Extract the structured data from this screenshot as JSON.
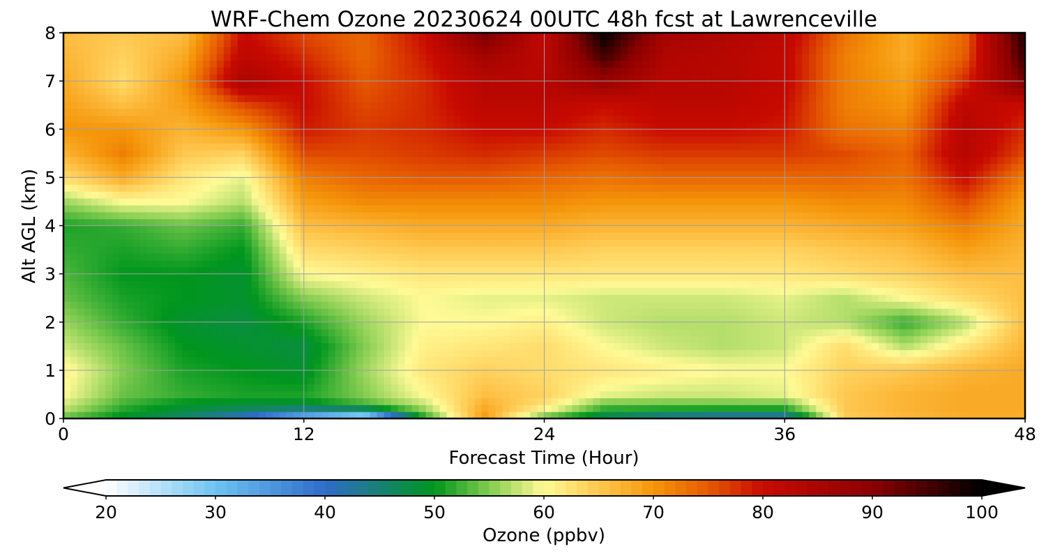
{
  "chart_data": {
    "type": "heatmap",
    "title": "WRF-Chem Ozone  20230624 00UTC 48h fcst at Lawrenceville",
    "xlabel": "Forecast Time (Hour)",
    "ylabel": "Alt AGL (km)",
    "xlim": [
      0,
      48
    ],
    "ylim": [
      0,
      8
    ],
    "x_ticks": [
      0,
      12,
      24,
      36,
      48
    ],
    "y_ticks": [
      0,
      1,
      2,
      3,
      4,
      5,
      6,
      7,
      8
    ],
    "grid": true,
    "x": [
      0,
      3,
      6,
      9,
      12,
      15,
      18,
      21,
      24,
      27,
      30,
      33,
      36,
      39,
      42,
      45,
      48
    ],
    "y": [
      0,
      0.1,
      0.25,
      0.5,
      1,
      1.5,
      2,
      2.5,
      3,
      3.5,
      4,
      4.5,
      5,
      5.5,
      6,
      6.5,
      7,
      7.5,
      8
    ],
    "z": [
      [
        52,
        49,
        45,
        40,
        33,
        27,
        51,
        70,
        52,
        45,
        42,
        40,
        40,
        64,
        66,
        67,
        67
      ],
      [
        56,
        50,
        47,
        42,
        35,
        30,
        53,
        69,
        57,
        49,
        46,
        45,
        45,
        65,
        67,
        68,
        68
      ],
      [
        58,
        52,
        49,
        48,
        48,
        52,
        57,
        68,
        62,
        53,
        53,
        53,
        53,
        65,
        67,
        68,
        68
      ],
      [
        60,
        54,
        52,
        51,
        51,
        55,
        60,
        66,
        64,
        59,
        58,
        58,
        59,
        65,
        67,
        68,
        68
      ],
      [
        61,
        55,
        51,
        50,
        49,
        56,
        62,
        64,
        63,
        62,
        61,
        60,
        60,
        64,
        65,
        67,
        68
      ],
      [
        58,
        54,
        50,
        49,
        48,
        55,
        61,
        62,
        63,
        60,
        58,
        57,
        58,
        63,
        57,
        62,
        67
      ],
      [
        56,
        52,
        49,
        48,
        51,
        56,
        60,
        60,
        61,
        58,
        57,
        57,
        58,
        57,
        52,
        57,
        66
      ],
      [
        54,
        51,
        50,
        49,
        55,
        58,
        60,
        59,
        59,
        58,
        58,
        58,
        59,
        57,
        60,
        63,
        66
      ],
      [
        53,
        50,
        50,
        49,
        60,
        61,
        62,
        62,
        62,
        62,
        62,
        62,
        62,
        63,
        64,
        66,
        66
      ],
      [
        52,
        51,
        52,
        50,
        63,
        64,
        65,
        65,
        65,
        64,
        64,
        64,
        64,
        65,
        66,
        69,
        67
      ],
      [
        51,
        52,
        54,
        52,
        66,
        67,
        68,
        68,
        68,
        67,
        67,
        67,
        67,
        68,
        69,
        72,
        68
      ],
      [
        56,
        60,
        60,
        57,
        69,
        71,
        71,
        71,
        71,
        70,
        70,
        70,
        70,
        71,
        71,
        76,
        69
      ],
      [
        63,
        68,
        62,
        59,
        72,
        74,
        75,
        75,
        74,
        73,
        74,
        74,
        74,
        74,
        73,
        80,
        72
      ],
      [
        67,
        72,
        65,
        64,
        76,
        76,
        77,
        78,
        77,
        76,
        77,
        77,
        77,
        76,
        74,
        83,
        76
      ],
      [
        70,
        70,
        67,
        70,
        79,
        77,
        78,
        80,
        80,
        78,
        80,
        80,
        79,
        73,
        72,
        83,
        78
      ],
      [
        69,
        66,
        69,
        76,
        80,
        76,
        78,
        82,
        82,
        80,
        82,
        82,
        80,
        72,
        70,
        82,
        80
      ],
      [
        68,
        63,
        70,
        85,
        80,
        75,
        78,
        83,
        83,
        88,
        83,
        83,
        81,
        72,
        69,
        78,
        92
      ],
      [
        67,
        64,
        68,
        82,
        78,
        74,
        79,
        86,
        82,
        95,
        84,
        83,
        81,
        72,
        68,
        75,
        96
      ],
      [
        66,
        65,
        66,
        80,
        76,
        74,
        80,
        92,
        81,
        100,
        86,
        84,
        82,
        73,
        68,
        74,
        98
      ]
    ],
    "colorbar": {
      "label": "Ozone  (ppbv)",
      "min": 20,
      "max": 100,
      "ticks": [
        20,
        30,
        40,
        50,
        60,
        70,
        80,
        90,
        100
      ],
      "extend": "both",
      "colors": [
        {
          "v": 20,
          "c": "#ffffff"
        },
        {
          "v": 30,
          "c": "#6ec3f2"
        },
        {
          "v": 40,
          "c": "#2f6cc9"
        },
        {
          "v": 50,
          "c": "#00961e"
        },
        {
          "v": 55,
          "c": "#82cc50"
        },
        {
          "v": 60,
          "c": "#fffa96"
        },
        {
          "v": 65,
          "c": "#ffc850"
        },
        {
          "v": 70,
          "c": "#f5960a"
        },
        {
          "v": 75,
          "c": "#e65a00"
        },
        {
          "v": 80,
          "c": "#c80a00"
        },
        {
          "v": 90,
          "c": "#8c0000"
        },
        {
          "v": 100,
          "c": "#000000"
        }
      ]
    }
  }
}
